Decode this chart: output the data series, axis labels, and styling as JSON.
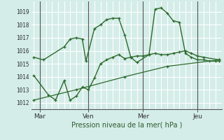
{
  "title": "Pression niveau de la mer( hPa )",
  "bg_color": "#d4ede8",
  "grid_color": "#b8ddd8",
  "line_color": "#2d6a2d",
  "xtick_labels": [
    "Mar",
    "Ven",
    "Mer",
    "Jeu"
  ],
  "xtick_positions": [
    0.5,
    4.5,
    9.0,
    13.5
  ],
  "ytick_values": [
    1012,
    1013,
    1014,
    1015,
    1016,
    1017,
    1018,
    1019
  ],
  "ylim": [
    1011.5,
    1019.8
  ],
  "xlim": [
    -0.2,
    15.5
  ],
  "vline_positions": [
    0.5,
    4.5,
    9.0,
    13.5
  ],
  "series1_x": [
    0,
    0.8,
    2.5,
    3.0,
    3.5,
    4.0,
    4.3,
    5.0,
    5.5,
    6.0,
    6.5,
    7.0,
    7.5,
    8.0,
    8.5,
    9.5,
    10.0,
    10.5,
    11.0,
    11.5,
    12.0,
    12.5,
    13.0,
    13.5,
    14.0,
    14.5,
    15.0,
    15.3
  ],
  "series1_y": [
    1015.5,
    1015.3,
    1016.3,
    1016.9,
    1017.0,
    1016.9,
    1015.2,
    1017.7,
    1018.0,
    1018.4,
    1018.5,
    1018.5,
    1017.2,
    1015.5,
    1015.1,
    1015.7,
    1019.2,
    1019.3,
    1018.9,
    1018.3,
    1018.2,
    1015.8,
    1015.5,
    1015.3,
    1015.3,
    1015.2,
    1015.2,
    1015.2
  ],
  "series2_x": [
    0,
    1.2,
    1.8,
    2.5,
    3.0,
    3.5,
    4.0,
    4.5,
    5.0,
    5.5,
    6.0,
    6.5,
    7.0,
    7.5,
    8.0,
    8.5,
    9.0,
    9.5,
    10.0,
    10.5,
    11.0,
    11.5,
    12.0,
    12.5,
    13.0,
    13.5,
    14.0,
    15.3
  ],
  "series2_y": [
    1014.1,
    1012.6,
    1012.2,
    1013.7,
    1012.2,
    1012.5,
    1013.2,
    1013.0,
    1013.9,
    1015.0,
    1015.3,
    1015.5,
    1015.7,
    1015.4,
    1015.5,
    1015.6,
    1015.6,
    1015.7,
    1015.8,
    1015.7,
    1015.7,
    1015.8,
    1015.9,
    1016.0,
    1015.8,
    1015.6,
    1015.5,
    1015.3
  ],
  "series3_x": [
    0,
    3.5,
    7.5,
    11.0,
    15.3
  ],
  "series3_y": [
    1012.2,
    1013.0,
    1014.0,
    1014.8,
    1015.3
  ]
}
